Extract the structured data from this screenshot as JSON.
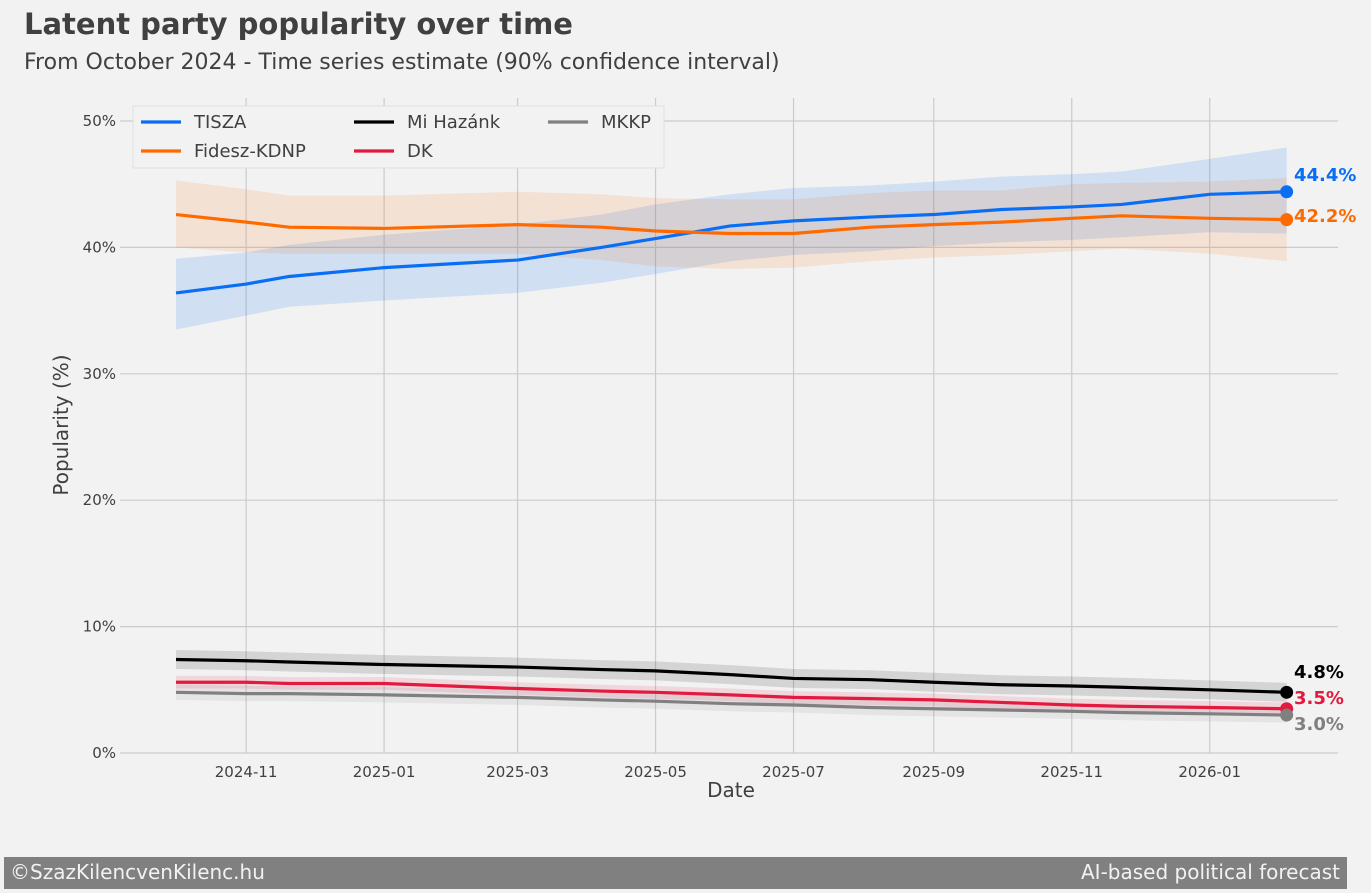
{
  "chart_data": {
    "type": "line",
    "title": "Latent party popularity over time",
    "subtitle": "From October 2024 - Time series estimate (90% confidence interval)",
    "xlabel": "Date",
    "ylabel": "Popularity (%)",
    "ylim": [
      0,
      52
    ],
    "yticks": [
      0,
      10,
      20,
      30,
      40,
      50
    ],
    "ytick_labels": [
      "0%",
      "10%",
      "20%",
      "30%",
      "40%",
      "50%"
    ],
    "xlim": [
      "2024-09-05",
      "2026-03-01"
    ],
    "xticks": [
      "2024-11-01",
      "2025-01-01",
      "2025-03-01",
      "2025-05-01",
      "2025-07-01",
      "2025-09-01",
      "2025-11-01",
      "2026-01-01"
    ],
    "xtick_labels": [
      "2024-11",
      "2025-01",
      "2025-03",
      "2025-05",
      "2025-07",
      "2025-09",
      "2025-11",
      "2026-01"
    ],
    "grid": true,
    "legend_placement": "top-left",
    "x": [
      "2024-10-01",
      "2024-11-01",
      "2024-11-20",
      "2025-01-01",
      "2025-03-01",
      "2025-04-07",
      "2025-05-01",
      "2025-06-03",
      "2025-07-01",
      "2025-08-04",
      "2025-09-01",
      "2025-10-01",
      "2025-11-01",
      "2025-11-23",
      "2026-01-01",
      "2026-02-04"
    ],
    "series": [
      {
        "name": "TISZA",
        "color": "#0a6ef5",
        "end_label": "44.4%",
        "values": [
          36.4,
          37.1,
          37.7,
          38.4,
          39.0,
          40.0,
          40.7,
          41.7,
          42.1,
          42.4,
          42.6,
          43.0,
          43.2,
          43.4,
          44.2,
          44.4
        ],
        "lower": [
          33.5,
          34.6,
          35.3,
          35.8,
          36.4,
          37.2,
          37.9,
          38.9,
          39.4,
          39.7,
          40.1,
          40.4,
          40.6,
          40.8,
          41.2,
          41.1
        ],
        "upper": [
          39.1,
          39.6,
          40.2,
          41.0,
          41.8,
          42.6,
          43.4,
          44.2,
          44.7,
          44.9,
          45.2,
          45.6,
          45.8,
          46.0,
          47.0,
          47.9
        ]
      },
      {
        "name": "Fidesz-KDNP",
        "color": "#ff6a00",
        "end_label": "42.2%",
        "values": [
          42.6,
          42.0,
          41.6,
          41.5,
          41.8,
          41.6,
          41.3,
          41.1,
          41.1,
          41.6,
          41.8,
          42.0,
          42.3,
          42.5,
          42.3,
          42.2
        ],
        "lower": [
          40.0,
          39.6,
          39.5,
          39.5,
          39.5,
          39.0,
          38.5,
          38.3,
          38.4,
          38.9,
          39.2,
          39.4,
          39.7,
          39.9,
          39.5,
          38.9
        ],
        "upper": [
          45.3,
          44.6,
          44.1,
          44.1,
          44.4,
          44.2,
          43.9,
          43.8,
          43.8,
          44.3,
          44.5,
          44.5,
          45.0,
          45.1,
          45.2,
          45.5
        ]
      },
      {
        "name": "Mi Hazánk",
        "color": "#000000",
        "end_label": "4.8%",
        "values": [
          7.4,
          7.3,
          7.2,
          7.0,
          6.8,
          6.6,
          6.5,
          6.2,
          5.9,
          5.8,
          5.6,
          5.4,
          5.3,
          5.2,
          5.0,
          4.8
        ],
        "lower": [
          6.65,
          6.55,
          6.45,
          6.25,
          6.05,
          5.85,
          5.75,
          5.45,
          5.15,
          5.05,
          4.85,
          4.65,
          4.55,
          4.45,
          4.25,
          4.05
        ],
        "upper": [
          8.15,
          8.05,
          7.95,
          7.75,
          7.55,
          7.35,
          7.25,
          6.95,
          6.65,
          6.55,
          6.35,
          6.15,
          6.05,
          5.95,
          5.75,
          5.55
        ]
      },
      {
        "name": "DK",
        "color": "#e31a3f",
        "end_label": "3.5%",
        "values": [
          5.6,
          5.6,
          5.5,
          5.5,
          5.1,
          4.9,
          4.8,
          4.6,
          4.4,
          4.3,
          4.2,
          4.0,
          3.8,
          3.7,
          3.6,
          3.5
        ],
        "lower": [
          5.1,
          5.1,
          5.0,
          5.0,
          4.6,
          4.4,
          4.3,
          4.1,
          3.9,
          3.8,
          3.7,
          3.5,
          3.3,
          3.2,
          3.1,
          3.0
        ],
        "upper": [
          6.1,
          6.1,
          6.0,
          6.0,
          5.6,
          5.4,
          5.3,
          5.1,
          4.9,
          4.8,
          4.7,
          4.5,
          4.3,
          4.2,
          4.1,
          4.0
        ]
      },
      {
        "name": "MKKP",
        "color": "#808080",
        "end_label": "3.0%",
        "values": [
          4.8,
          4.7,
          4.7,
          4.6,
          4.4,
          4.2,
          4.1,
          3.9,
          3.8,
          3.6,
          3.5,
          3.4,
          3.3,
          3.2,
          3.1,
          3.0
        ],
        "lower": [
          4.2,
          4.1,
          4.1,
          4.0,
          3.8,
          3.6,
          3.5,
          3.3,
          3.2,
          3.0,
          2.9,
          2.8,
          2.7,
          2.6,
          2.5,
          2.4
        ],
        "upper": [
          5.4,
          5.3,
          5.3,
          5.2,
          5.0,
          4.8,
          4.7,
          4.5,
          4.4,
          4.2,
          4.1,
          4.0,
          3.9,
          3.8,
          3.7,
          3.6
        ]
      }
    ]
  },
  "footer": {
    "left": "©SzazKilencvenKilenc.hu",
    "right": "AI-based political forecast"
  }
}
